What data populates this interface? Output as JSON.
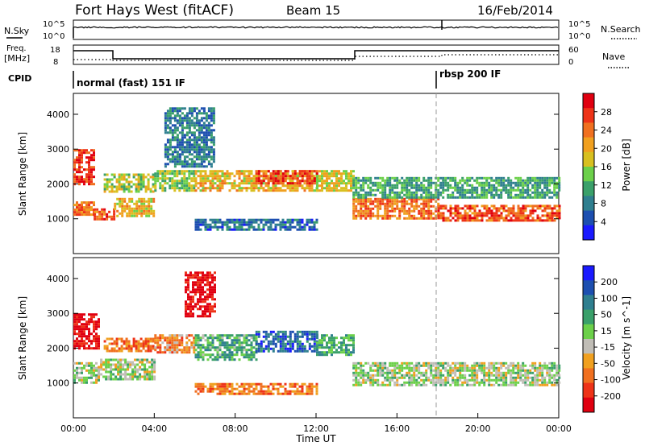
{
  "header": {
    "station": "Fort Hays West (fitACF)",
    "beam": "Beam 15",
    "date": "16/Feb/2014"
  },
  "noise_panel": {
    "left_label": "N.Sky",
    "right_label": "N.Search",
    "ticks_left": [
      "10^5",
      "10^0"
    ],
    "ticks_right": [
      "10^5",
      "10^0"
    ]
  },
  "freq_panel": {
    "left_label_top": "Freq.",
    "left_label_unit": "[MHz]",
    "right_label": "Nave",
    "ticks_left": [
      "18",
      "8"
    ],
    "ticks_right": [
      "60",
      "0"
    ]
  },
  "cpid": {
    "label": "CPID",
    "modes": [
      {
        "name": "normal (fast) 151 IF",
        "start": "00:00"
      },
      {
        "name": "rbsp 200 IF",
        "start": "18:00"
      }
    ]
  },
  "colors": {
    "grid": "#b0b0b0",
    "velocity_ground": "#c0bdb6"
  },
  "chart_data": [
    {
      "type": "heatmap",
      "name": "power",
      "xlabel": "Time UT",
      "ylabel": "Slant Range [km]",
      "x_ticks": [
        "00:00",
        "04:00",
        "08:00",
        "12:00",
        "16:00",
        "20:00",
        "00:00"
      ],
      "y_ticks": [
        "1000",
        "2000",
        "3000",
        "4000"
      ],
      "ylim": [
        0,
        4600
      ],
      "colorbar": {
        "label": "Power [dB]",
        "ticks": [
          "4",
          "8",
          "12",
          "16",
          "20",
          "24",
          "28"
        ],
        "colors": [
          "#1a1aff",
          "#1d4fb0",
          "#2f7f8f",
          "#3aa06a",
          "#6cd04a",
          "#d8c020",
          "#f0a020",
          "#f07020",
          "#ee3318",
          "#e00010"
        ]
      },
      "bands": [
        {
          "t0": 0.0,
          "t1": 1.0,
          "r0": 1100,
          "r1": 1500,
          "level": 0.75
        },
        {
          "t0": 0.0,
          "t1": 1.0,
          "r0": 2000,
          "r1": 3000,
          "level": 0.85
        },
        {
          "t0": 1.0,
          "t1": 2.0,
          "r0": 1000,
          "r1": 1300,
          "level": 0.8
        },
        {
          "t0": 2.0,
          "t1": 4.0,
          "r0": 1100,
          "r1": 1600,
          "level": 0.6
        },
        {
          "t0": 1.5,
          "t1": 4.0,
          "r0": 1800,
          "r1": 2300,
          "level": 0.5
        },
        {
          "t0": 4.0,
          "t1": 6.0,
          "r0": 1800,
          "r1": 2400,
          "level": 0.45
        },
        {
          "t0": 6.0,
          "t1": 12.0,
          "r0": 1800,
          "r1": 2400,
          "level": 0.6
        },
        {
          "t0": 9.0,
          "t1": 12.0,
          "r0": 2000,
          "r1": 2400,
          "level": 0.85
        },
        {
          "t0": 12.0,
          "t1": 13.8,
          "r0": 1800,
          "r1": 2400,
          "level": 0.55
        },
        {
          "t0": 13.8,
          "t1": 18.0,
          "r0": 1000,
          "r1": 1600,
          "level": 0.75
        },
        {
          "t0": 13.8,
          "t1": 24.0,
          "r0": 1600,
          "r1": 2200,
          "level": 0.35
        },
        {
          "t0": 18.0,
          "t1": 24.0,
          "r0": 950,
          "r1": 1400,
          "level": 0.8
        },
        {
          "t0": 6.0,
          "t1": 12.0,
          "r0": 700,
          "r1": 1000,
          "level": 0.2
        },
        {
          "t0": 4.5,
          "t1": 7.0,
          "r0": 2500,
          "r1": 4200,
          "level": 0.25
        }
      ]
    },
    {
      "type": "heatmap",
      "name": "velocity",
      "xlabel": "Time UT",
      "ylabel": "Slant Range [km]",
      "x_ticks": [
        "00:00",
        "04:00",
        "08:00",
        "12:00",
        "16:00",
        "20:00",
        "00:00"
      ],
      "y_ticks": [
        "1000",
        "2000",
        "3000",
        "4000"
      ],
      "ylim": [
        0,
        4600
      ],
      "colorbar": {
        "label": "Velocity [m s^-1]",
        "ticks": [
          "200",
          "100",
          "50",
          "15",
          "-15",
          "-50",
          "-100",
          "-200"
        ],
        "colors": [
          "#1a1aff",
          "#1d4fb0",
          "#2f7f8f",
          "#3aa06a",
          "#6cd04a",
          "#c0bdb6",
          "#f0a020",
          "#f07020",
          "#ee3318",
          "#e00010"
        ]
      },
      "bands": [
        {
          "t0": 0.0,
          "t1": 1.2,
          "r0": 2000,
          "r1": 3000,
          "level": 0.95
        },
        {
          "t0": 0.0,
          "t1": 1.2,
          "r0": 1000,
          "r1": 1600,
          "level": 0.5
        },
        {
          "t0": 1.2,
          "t1": 4.0,
          "r0": 1100,
          "r1": 1700,
          "level": 0.5
        },
        {
          "t0": 1.5,
          "t1": 4.0,
          "r0": 1900,
          "r1": 2300,
          "level": 0.75
        },
        {
          "t0": 4.0,
          "t1": 6.0,
          "r0": 1900,
          "r1": 2400,
          "level": 0.7
        },
        {
          "t0": 6.0,
          "t1": 9.0,
          "r0": 1700,
          "r1": 2400,
          "level": 0.38
        },
        {
          "t0": 9.0,
          "t1": 12.0,
          "r0": 1900,
          "r1": 2500,
          "level": 0.2
        },
        {
          "t0": 12.0,
          "t1": 13.8,
          "r0": 1800,
          "r1": 2400,
          "level": 0.35
        },
        {
          "t0": 13.8,
          "t1": 24.0,
          "r0": 950,
          "r1": 1600,
          "level": 0.5
        },
        {
          "t0": 5.5,
          "t1": 7.0,
          "r0": 2900,
          "r1": 4200,
          "level": 0.95
        },
        {
          "t0": 6.0,
          "t1": 12.0,
          "r0": 700,
          "r1": 1000,
          "level": 0.75
        }
      ]
    }
  ]
}
